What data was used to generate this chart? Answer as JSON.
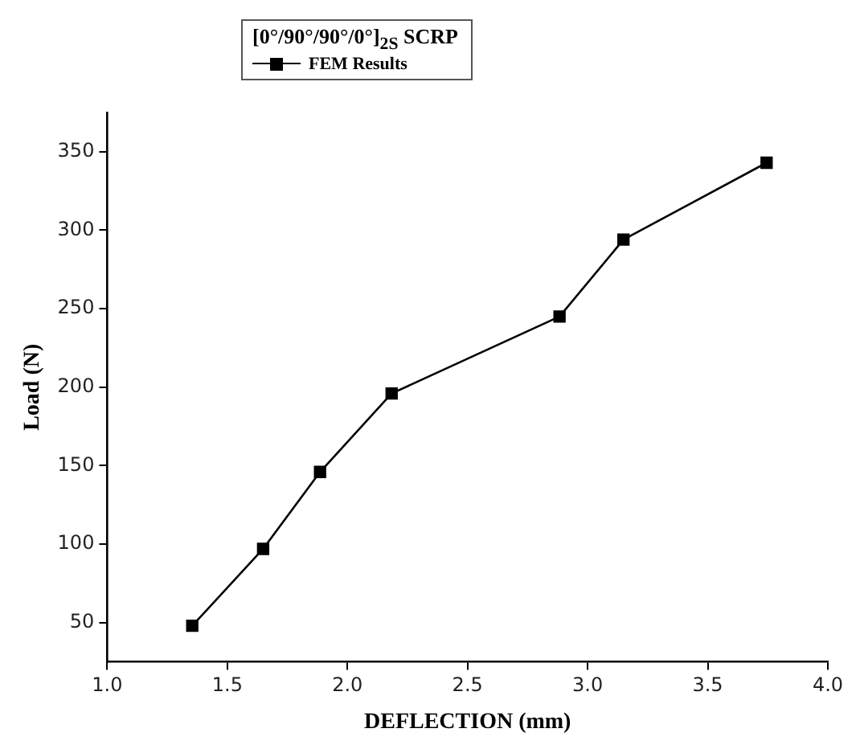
{
  "chart_data": {
    "type": "line",
    "xlabel": "DEFLECTION (mm)",
    "ylabel": "Load (N)",
    "legend_title": "[0°/90°/90°/0°]$_{2S}$ SCRP",
    "x": [
      1.354,
      1.649,
      1.886,
      2.184,
      2.883,
      3.149,
      3.745
    ],
    "series": [
      {
        "name": "FEM Results",
        "color": "#000000",
        "values": [
          48,
          97,
          146,
          196,
          245,
          294,
          343
        ]
      }
    ],
    "xlim": [
      1.0,
      4.0
    ],
    "xticks": [
      {
        "value": 1,
        "label": "1.0"
      },
      1.5,
      {
        "value": 2,
        "label": "2.0"
      },
      2.5,
      {
        "value": 3,
        "label": "3.0"
      },
      3.5,
      {
        "value": 4,
        "label": "4.0"
      }
    ],
    "ylim": [
      25,
      375
    ],
    "yticks": [
      50,
      100,
      150,
      200,
      250,
      300,
      350
    ],
    "grid": false,
    "legend": "top",
    "marker": "square",
    "line_style": "solid"
  }
}
